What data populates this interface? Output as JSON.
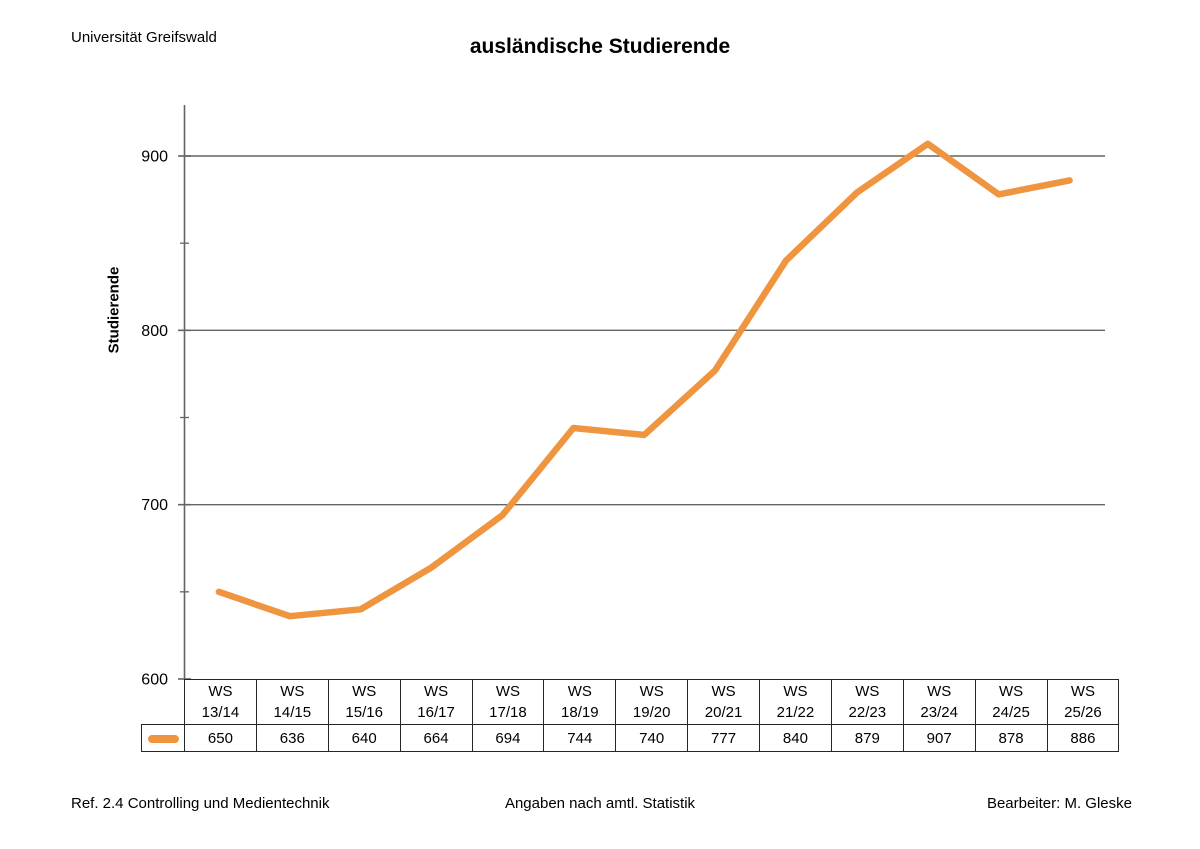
{
  "header": {
    "org": "Universität Greifswald",
    "title": "ausländische Studierende"
  },
  "footer": {
    "left": "Ref. 2.4 Controlling und Medientechnik",
    "center": "Angaben nach amtl. Statistik",
    "right": "Bearbeiter: M. Gleske"
  },
  "chart_data": {
    "type": "line",
    "title": "ausländische Studierende",
    "ylabel": "Studierende",
    "xlabel": "",
    "categories": [
      "WS 13/14",
      "WS 14/15",
      "WS 15/16",
      "WS 16/17",
      "WS 17/18",
      "WS 18/19",
      "WS 19/20",
      "WS 20/21",
      "WS 21/22",
      "WS 22/23",
      "WS 23/24",
      "WS 24/25",
      "WS 25/26"
    ],
    "values": [
      650,
      636,
      640,
      664,
      694,
      744,
      740,
      777,
      840,
      879,
      907,
      878,
      886
    ],
    "series_name": "ausländische Studierende",
    "ylim": [
      600,
      930
    ],
    "yticks_major": [
      600,
      700,
      800,
      900
    ],
    "yticks_minor": [
      650,
      750,
      850
    ],
    "grid": "horizontal-major",
    "legend_position": "table-key-left",
    "data_table_shown": true,
    "colors": {
      "line": "#F0953F",
      "axis": "#646464",
      "gridline": "#646464",
      "table_border": "#262626",
      "text": "#000000"
    }
  }
}
